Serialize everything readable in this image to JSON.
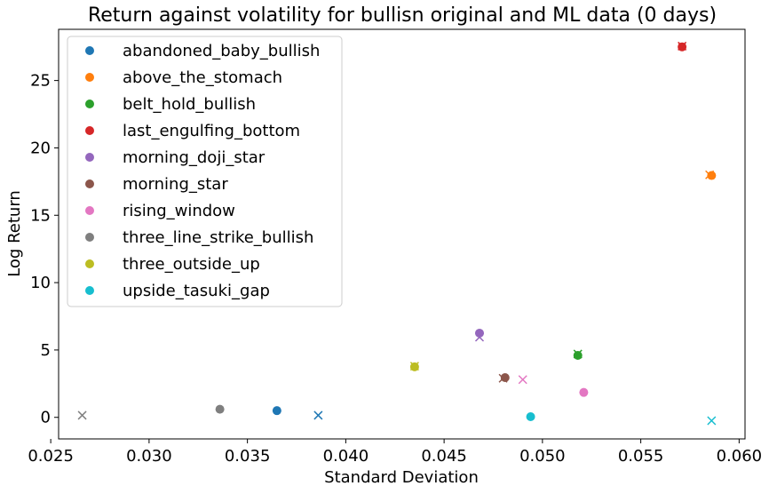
{
  "chart_data": {
    "type": "scatter",
    "title": "Return against volatility for bullisn original and ML data (0 days)",
    "xlabel": "Standard Deviation",
    "ylabel": "Log Return",
    "xlim": [
      0.0254,
      0.0603
    ],
    "ylim": [
      -1.6,
      28.8
    ],
    "xticks": [
      "0.025",
      "0.030",
      "0.035",
      "0.040",
      "0.045",
      "0.050",
      "0.055",
      "0.060"
    ],
    "yticks": [
      "0",
      "5",
      "10",
      "15",
      "20",
      "25"
    ],
    "grid": false,
    "legend_position": "top-left",
    "marker_legend": {
      "dot": "original",
      "x": "ML"
    },
    "series": [
      {
        "name": "abandoned_baby_bullish",
        "color": "#1f77b4",
        "original": [
          [
            0.0365,
            0.5
          ]
        ],
        "ml": [
          [
            0.0386,
            0.15
          ]
        ]
      },
      {
        "name": "above_the_stomach",
        "color": "#ff7f0e",
        "original": [
          [
            0.0586,
            17.95
          ]
        ],
        "ml": [
          [
            0.0585,
            18.0
          ]
        ]
      },
      {
        "name": "belt_hold_bullish",
        "color": "#2ca02c",
        "original": [
          [
            0.0518,
            4.6
          ]
        ],
        "ml": [
          [
            0.0518,
            4.7
          ]
        ]
      },
      {
        "name": "last_engulfing_bottom",
        "color": "#d62728",
        "original": [
          [
            0.0571,
            27.5
          ]
        ],
        "ml": [
          [
            0.0571,
            27.55
          ]
        ]
      },
      {
        "name": "morning_doji_star",
        "color": "#9467bd",
        "original": [
          [
            0.0468,
            6.25
          ]
        ],
        "ml": [
          [
            0.0468,
            5.95
          ]
        ]
      },
      {
        "name": "morning_star",
        "color": "#8c564b",
        "original": [
          [
            0.0481,
            2.95
          ]
        ],
        "ml": [
          [
            0.048,
            2.9
          ]
        ]
      },
      {
        "name": "rising_window",
        "color": "#e377c2",
        "original": [
          [
            0.0521,
            1.85
          ]
        ],
        "ml": [
          [
            0.049,
            2.8
          ]
        ]
      },
      {
        "name": "three_line_strike_bullish",
        "color": "#7f7f7f",
        "original": [
          [
            0.0336,
            0.6
          ]
        ],
        "ml": [
          [
            0.0266,
            0.15
          ]
        ]
      },
      {
        "name": "three_outside_up",
        "color": "#bcbd22",
        "original": [
          [
            0.0435,
            3.75
          ]
        ],
        "ml": [
          [
            0.0435,
            3.8
          ]
        ]
      },
      {
        "name": "upside_tasuki_gap",
        "color": "#17becf",
        "original": [
          [
            0.0494,
            0.05
          ]
        ],
        "ml": [
          [
            0.0586,
            -0.25
          ]
        ]
      }
    ]
  }
}
